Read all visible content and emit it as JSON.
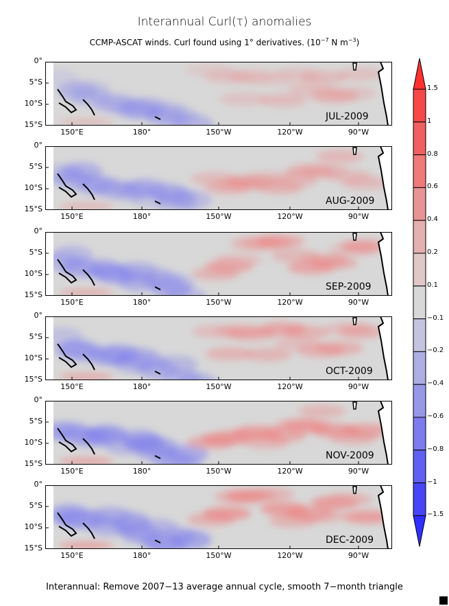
{
  "title": "Interannual Curl(τ) anomalies",
  "subtitle": {
    "text": "CCMP-ASCAT winds. Curl found using 1° derivatives. (10",
    "exp1": "−7",
    "mid": " N m",
    "exp2": "−3",
    "end": ")"
  },
  "panels": [
    {
      "label": "JUL-2009",
      "intensity": 0.55
    },
    {
      "label": "AUG-2009",
      "intensity": 0.7
    },
    {
      "label": "SEP-2009",
      "intensity": 0.8
    },
    {
      "label": "OCT-2009",
      "intensity": 0.9
    },
    {
      "label": "NOV-2009",
      "intensity": 1.0
    },
    {
      "label": "DEC-2009",
      "intensity": 1.05
    }
  ],
  "lat_labels": [
    "0°",
    "5°S",
    "10°S",
    "15°S"
  ],
  "lon_labels": [
    "150°E",
    "180°",
    "150°W",
    "120°W",
    "90°W"
  ],
  "colorbar": {
    "labels": [
      "1.5",
      "1",
      "0.8",
      "0.6",
      "0.4",
      "0.2",
      "0.1",
      "−0.1",
      "−0.2",
      "−0.4",
      "−0.6",
      "−0.8",
      "−1",
      "−1.5"
    ],
    "colors": [
      "#ff3030",
      "#f54848",
      "#f06060",
      "#f07a7a",
      "#e89494",
      "#e4b0b0",
      "#e0c8c8",
      "#d8d8d8",
      "#c4c4e0",
      "#aeaee4",
      "#9898e8",
      "#7c7cee",
      "#6060f2",
      "#4646f8",
      "#2f2fff"
    ]
  },
  "footer": "Interannual: Remove 2007−13 average annual cycle, smooth 7−month triangle"
}
